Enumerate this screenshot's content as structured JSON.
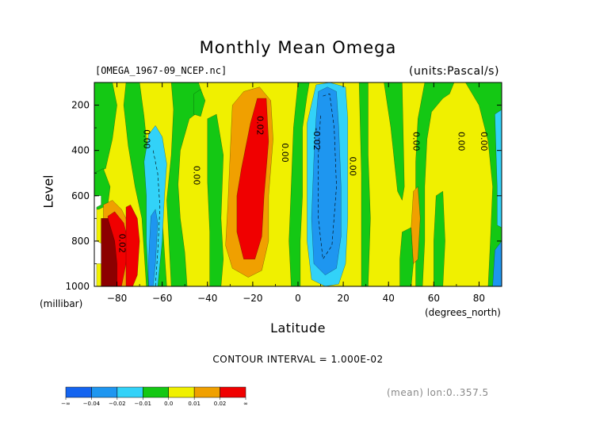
{
  "header": {
    "title": "Monthly Mean Omega",
    "file": "[OMEGA_1967-09_NCEP.nc]",
    "units": "(units:Pascal/s)"
  },
  "footer": {
    "contour_interval": "CONTOUR INTERVAL = 1.000E-02",
    "mean_info": "(mean) lon:0..357.5"
  },
  "chart_data": {
    "type": "heatmap",
    "title": "Monthly Mean Omega",
    "xlabel": "Latitude",
    "xunit": "(degrees_north)",
    "ylabel": "Level",
    "yunit": "(millibar)",
    "xlim": [
      -90,
      90
    ],
    "ylim": [
      1000,
      100
    ],
    "xticks": [
      -80,
      -60,
      -40,
      -20,
      0,
      20,
      40,
      60,
      80
    ],
    "yticks": [
      200,
      400,
      600,
      800,
      1000
    ],
    "levels": [
      -0.04,
      -0.03,
      -0.02,
      -0.01,
      0.0,
      0.01,
      0.02
    ],
    "colors": {
      "lt_m004": "#1464f0",
      "m004_m002": "#1e96f0",
      "m002_m001": "#32d2f8",
      "m001_0": "#14c814",
      "z_001": "#f0f000",
      "p001_002": "#f0a000",
      "gt_002": "#f00000",
      "very_high": "#8c0000",
      "missing": "#ffffff"
    },
    "colorbar": {
      "labels": [
        "-∞",
        "-0.04",
        "-0.02",
        "-0.01",
        "0.0",
        "0.01",
        "0.02",
        "∞"
      ],
      "colors": [
        "#1464f0",
        "#1e96f0",
        "#32d2f8",
        "#14c814",
        "#f0f000",
        "#f0a000",
        "#f00000"
      ]
    },
    "contour_labels": [
      {
        "text": "0.00",
        "lat": -67,
        "lev": 350
      },
      {
        "text": "0.00",
        "lat": -45,
        "lev": 510
      },
      {
        "text": "0.02",
        "lat": -17,
        "lev": 290
      },
      {
        "text": "0.00",
        "lat": -6,
        "lev": 410
      },
      {
        "text": "-0.02",
        "lat": 8,
        "lev": 350
      },
      {
        "text": "0.00",
        "lat": 24,
        "lev": 470
      },
      {
        "text": "0.00",
        "lat": 52,
        "lev": 360
      },
      {
        "text": "0.00",
        "lat": 72,
        "lev": 360
      },
      {
        "text": "0.00",
        "lat": 82,
        "lev": 360
      },
      {
        "text": "0.02",
        "lat": -78,
        "lev": 810
      }
    ],
    "regions": [
      {
        "name": "cyan-left-edge",
        "fill": "#32d2f8",
        "pts": [
          [
            -90,
            140
          ],
          [
            -88,
            140
          ],
          [
            -87,
            400
          ],
          [
            -88,
            650
          ],
          [
            -90,
            650
          ]
        ]
      },
      {
        "name": "green-left",
        "fill": "#14c814",
        "pts": [
          [
            -90,
            100
          ],
          [
            -82,
            100
          ],
          [
            -80,
            200
          ],
          [
            -82,
            350
          ],
          [
            -85,
            480
          ],
          [
            -90,
            500
          ]
        ]
      },
      {
        "name": "green-left-lower",
        "fill": "#14c814",
        "pts": [
          [
            -90,
            500
          ],
          [
            -86,
            480
          ],
          [
            -83,
            560
          ],
          [
            -84,
            640
          ],
          [
            -88,
            660
          ],
          [
            -90,
            660
          ]
        ]
      },
      {
        "name": "green-col-a",
        "fill": "#14c814",
        "pts": [
          [
            -76,
            100
          ],
          [
            -70,
            100
          ],
          [
            -68,
            250
          ],
          [
            -66,
            450
          ],
          [
            -62,
            560
          ],
          [
            -60,
            700
          ],
          [
            -58,
            1000
          ],
          [
            -67,
            1000
          ],
          [
            -69,
            700
          ],
          [
            -72,
            560
          ],
          [
            -75,
            380
          ],
          [
            -77,
            200
          ]
        ]
      },
      {
        "name": "cyan-col-a",
        "fill": "#32d2f8",
        "pts": [
          [
            -66,
            330
          ],
          [
            -63,
            290
          ],
          [
            -60,
            340
          ],
          [
            -58,
            460
          ],
          [
            -59,
            600
          ],
          [
            -60,
            800
          ],
          [
            -62,
            1000
          ],
          [
            -66,
            1000
          ],
          [
            -67,
            800
          ],
          [
            -67,
            600
          ],
          [
            -68,
            450
          ]
        ]
      },
      {
        "name": "blue-col-a",
        "fill": "#1e96f0",
        "pts": [
          [
            -65,
            690
          ],
          [
            -63,
            660
          ],
          [
            -62,
            720
          ],
          [
            -63,
            900
          ],
          [
            -64,
            1000
          ],
          [
            -66,
            1000
          ],
          [
            -66,
            880
          ]
        ]
      },
      {
        "name": "green-col-b",
        "fill": "#14c814",
        "pts": [
          [
            -56,
            100
          ],
          [
            -44,
            100
          ],
          [
            -42,
            160
          ],
          [
            -44,
            230
          ],
          [
            -48,
            260
          ],
          [
            -52,
            400
          ],
          [
            -53,
            550
          ],
          [
            -52,
            700
          ],
          [
            -50,
            850
          ],
          [
            -49,
            1000
          ],
          [
            -56,
            1000
          ],
          [
            -57,
            800
          ],
          [
            -58,
            620
          ],
          [
            -56,
            420
          ],
          [
            -55,
            220
          ]
        ]
      },
      {
        "name": "green-col-b2",
        "fill": "#14c814",
        "pts": [
          [
            -40,
            260
          ],
          [
            -36,
            240
          ],
          [
            -33,
            420
          ],
          [
            -34,
            700
          ],
          [
            -33,
            880
          ],
          [
            -34,
            1000
          ],
          [
            -39,
            1000
          ],
          [
            -39,
            760
          ],
          [
            -40,
            540
          ]
        ]
      },
      {
        "name": "green-small-top",
        "fill": "#14c814",
        "pts": [
          [
            -46,
            150
          ],
          [
            -43,
            130
          ],
          [
            -41,
            180
          ],
          [
            -43,
            250
          ],
          [
            -46,
            240
          ]
        ]
      },
      {
        "name": "orange-center",
        "fill": "#f0a000",
        "pts": [
          [
            -29,
            200
          ],
          [
            -24,
            140
          ],
          [
            -17,
            120
          ],
          [
            -12,
            180
          ],
          [
            -11,
            350
          ],
          [
            -13,
            600
          ],
          [
            -13,
            800
          ],
          [
            -16,
            930
          ],
          [
            -22,
            960
          ],
          [
            -29,
            920
          ],
          [
            -32,
            820
          ],
          [
            -31,
            640
          ],
          [
            -30,
            420
          ]
        ]
      },
      {
        "name": "red-center",
        "fill": "#f00000",
        "pts": [
          [
            -21,
            280
          ],
          [
            -18,
            170
          ],
          [
            -14,
            170
          ],
          [
            -13,
            360
          ],
          [
            -15,
            600
          ],
          [
            -16,
            780
          ],
          [
            -19,
            880
          ],
          [
            -24,
            880
          ],
          [
            -27,
            760
          ],
          [
            -27,
            600
          ],
          [
            -25,
            480
          ]
        ]
      },
      {
        "name": "green-center-right",
        "fill": "#14c814",
        "pts": [
          [
            0,
            100
          ],
          [
            5,
            100
          ],
          [
            4,
            160
          ],
          [
            2,
            300
          ],
          [
            2,
            600
          ],
          [
            1,
            800
          ],
          [
            1,
            1000
          ],
          [
            -3,
            1000
          ],
          [
            -4,
            800
          ],
          [
            -3,
            560
          ],
          [
            -2,
            300
          ]
        ]
      },
      {
        "name": "cyan-center-right",
        "fill": "#32d2f8",
        "pts": [
          [
            8,
            110
          ],
          [
            14,
            100
          ],
          [
            21,
            120
          ],
          [
            22,
            260
          ],
          [
            22,
            500
          ],
          [
            22,
            700
          ],
          [
            21,
            900
          ],
          [
            18,
            990
          ],
          [
            12,
            1000
          ],
          [
            6,
            970
          ],
          [
            4,
            800
          ],
          [
            4,
            500
          ],
          [
            4,
            280
          ]
        ]
      },
      {
        "name": "blue-center-right",
        "fill": "#1e96f0",
        "pts": [
          [
            9,
            140
          ],
          [
            13,
            120
          ],
          [
            17,
            140
          ],
          [
            18,
            300
          ],
          [
            19,
            560
          ],
          [
            19,
            780
          ],
          [
            17,
            920
          ],
          [
            12,
            950
          ],
          [
            7,
            900
          ],
          [
            6,
            700
          ],
          [
            7,
            440
          ],
          [
            8,
            260
          ]
        ]
      },
      {
        "name": "green-right-a",
        "fill": "#14c814",
        "pts": [
          [
            27,
            100
          ],
          [
            31,
            100
          ],
          [
            31,
            420
          ],
          [
            32,
            700
          ],
          [
            31,
            1000
          ],
          [
            28,
            1000
          ],
          [
            28,
            760
          ],
          [
            28,
            500
          ]
        ]
      },
      {
        "name": "green-right-b",
        "fill": "#14c814",
        "pts": [
          [
            38,
            100
          ],
          [
            46,
            100
          ],
          [
            47,
            560
          ],
          [
            46,
            620
          ],
          [
            44,
            580
          ],
          [
            41,
            300
          ]
        ]
      },
      {
        "name": "green-right-c",
        "fill": "#14c814",
        "pts": [
          [
            56,
            100
          ],
          [
            69,
            100
          ],
          [
            67,
            150
          ],
          [
            64,
            170
          ],
          [
            59,
            230
          ],
          [
            57,
            350
          ],
          [
            56,
            560
          ],
          [
            56,
            800
          ],
          [
            55,
            1000
          ],
          [
            52,
            1000
          ],
          [
            52,
            700
          ],
          [
            52,
            450
          ],
          [
            53,
            260
          ]
        ]
      },
      {
        "name": "green-right-d",
        "fill": "#14c814",
        "pts": [
          [
            74,
            100
          ],
          [
            90,
            100
          ],
          [
            90,
            1000
          ],
          [
            84,
            1000
          ],
          [
            85,
            800
          ],
          [
            86,
            560
          ],
          [
            84,
            360
          ],
          [
            80,
            200
          ]
        ]
      },
      {
        "name": "green-right-e",
        "fill": "#14c814",
        "pts": [
          [
            46,
            760
          ],
          [
            50,
            740
          ],
          [
            51,
            900
          ],
          [
            50,
            1000
          ],
          [
            45,
            1000
          ],
          [
            45,
            880
          ]
        ]
      },
      {
        "name": "green-right-f",
        "fill": "#14c814",
        "pts": [
          [
            61,
            600
          ],
          [
            64,
            580
          ],
          [
            65,
            800
          ],
          [
            64,
            1000
          ],
          [
            60,
            1000
          ],
          [
            60,
            800
          ]
        ]
      },
      {
        "name": "cyan-right",
        "fill": "#32d2f8",
        "pts": [
          [
            87,
            240
          ],
          [
            90,
            220
          ],
          [
            90,
            740
          ],
          [
            88,
            730
          ],
          [
            88,
            560
          ]
        ]
      },
      {
        "name": "blue-right",
        "fill": "#1e96f0",
        "pts": [
          [
            87,
            840
          ],
          [
            90,
            800
          ],
          [
            90,
            1000
          ],
          [
            86,
            1000
          ]
        ]
      },
      {
        "name": "orange-right",
        "fill": "#f0a000",
        "pts": [
          [
            51,
            580
          ],
          [
            53,
            560
          ],
          [
            54,
            700
          ],
          [
            53,
            880
          ],
          [
            51,
            900
          ],
          [
            50,
            740
          ]
        ]
      },
      {
        "name": "orange-left",
        "fill": "#f0a000",
        "pts": [
          [
            -86,
            640
          ],
          [
            -82,
            620
          ],
          [
            -78,
            660
          ],
          [
            -73,
            760
          ],
          [
            -72,
            900
          ],
          [
            -73,
            1000
          ],
          [
            -86,
            1000
          ]
        ]
      },
      {
        "name": "red-left",
        "fill": "#f00000",
        "pts": [
          [
            -84,
            690
          ],
          [
            -81,
            670
          ],
          [
            -77,
            720
          ],
          [
            -75,
            800
          ],
          [
            -76,
            900
          ],
          [
            -78,
            1000
          ],
          [
            -84,
            1000
          ]
        ]
      },
      {
        "name": "red-left-2",
        "fill": "#f00000",
        "pts": [
          [
            -76,
            650
          ],
          [
            -74,
            640
          ],
          [
            -71,
            700
          ],
          [
            -70,
            800
          ],
          [
            -71,
            950
          ],
          [
            -73,
            1000
          ],
          [
            -76,
            1000
          ],
          [
            -76,
            820
          ]
        ]
      },
      {
        "name": "darkred-left",
        "fill": "#8c0000",
        "pts": [
          [
            -87,
            700
          ],
          [
            -84,
            700
          ],
          [
            -81,
            800
          ],
          [
            -80,
            900
          ],
          [
            -80,
            1000
          ],
          [
            -87,
            1000
          ]
        ]
      },
      {
        "name": "missing-left",
        "fill": "#ffffff",
        "pts": [
          [
            -90,
            600
          ],
          [
            -87,
            600
          ],
          [
            -87,
            640
          ],
          [
            -89,
            650
          ],
          [
            -89,
            800
          ],
          [
            -87,
            810
          ],
          [
            -87,
            900
          ],
          [
            -89,
            900
          ],
          [
            -89,
            1000
          ],
          [
            -90,
            1000
          ]
        ]
      }
    ]
  }
}
